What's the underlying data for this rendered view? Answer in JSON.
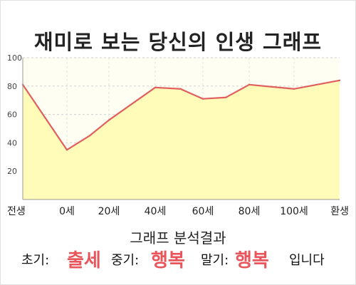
{
  "chart_data": {
    "type": "area",
    "title": "재미로 보는 당신의 인생 그래프",
    "x": [
      "전생",
      "0세",
      "20세",
      "40세",
      "60세",
      "80세",
      "100세",
      "환생"
    ],
    "y_ticks": [
      20,
      40,
      60,
      80,
      100
    ],
    "ylim": [
      0,
      100
    ],
    "series": [
      {
        "points": [
          {
            "x": "전생",
            "y": 81
          },
          {
            "x": "0세",
            "y": 35
          },
          {
            "x": "10세",
            "y": 45
          },
          {
            "x": "20세",
            "y": 56
          },
          {
            "x": "30세",
            "y": 69
          },
          {
            "x": "40세",
            "y": 79
          },
          {
            "x": "50세",
            "y": 78
          },
          {
            "x": "60세",
            "y": 71
          },
          {
            "x": "70세",
            "y": 72
          },
          {
            "x": "80세",
            "y": 81
          },
          {
            "x": "100세",
            "y": 78
          },
          {
            "x": "환생",
            "y": 84
          }
        ]
      }
    ],
    "grid": true,
    "colors": {
      "line": "#e06060",
      "fill": "#fefcb8",
      "plot_bg": "#fffef2"
    }
  },
  "analysis": {
    "heading": "그래프 분석결과",
    "early_label": "초기:",
    "early_value": "출세",
    "middle_label": "중기:",
    "middle_value": "행복",
    "late_label": "말기:",
    "late_value": "행복",
    "ending": "입니다"
  }
}
